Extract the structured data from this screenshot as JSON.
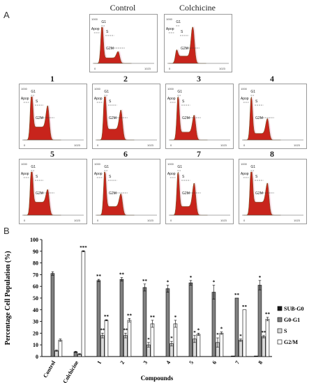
{
  "panel_a_label": "A",
  "panel_b_label": "B",
  "histograms": [
    {
      "title": "Control",
      "gate_labels": [
        "Apop",
        "G1",
        "S",
        "G2M"
      ],
      "axis_left": "1000",
      "axis_start": "0",
      "axis_end": "1023",
      "g1_level": 1.0,
      "s_level": 0.15,
      "g2_level": 0.18
    },
    {
      "title": "Colchicine",
      "gate_labels": [
        "Apop",
        "G1",
        "S",
        "G2M"
      ],
      "axis_left": "1000",
      "axis_start": "0",
      "axis_end": "1023",
      "g1_level": 0.18,
      "s_level": 0.2,
      "g2_level": 0.85
    },
    {
      "title": "1",
      "gate_labels": [
        "Apop",
        "G1",
        "S",
        "G2M"
      ],
      "axis_left": "1000",
      "axis_start": "0",
      "axis_end": "1023",
      "g1_level": 0.95,
      "s_level": 0.3,
      "g2_level": 0.5
    },
    {
      "title": "2",
      "gate_labels": [
        "Apop",
        "G1",
        "S",
        "G2M"
      ],
      "axis_left": "1000",
      "axis_start": "0",
      "axis_end": "1023",
      "g1_level": 1.0,
      "s_level": 0.25,
      "g2_level": 0.45
    },
    {
      "title": "3",
      "gate_labels": [
        "Apop",
        "G1",
        "S",
        "G2M"
      ],
      "axis_left": "1000",
      "axis_start": "0",
      "axis_end": "1023",
      "g1_level": 0.9,
      "s_level": 0.18,
      "g2_level": 0.4
    },
    {
      "title": "4",
      "gate_labels": [
        "Apop",
        "G1",
        "S",
        "G2M"
      ],
      "axis_left": "1000",
      "axis_start": "0",
      "axis_end": "1023",
      "g1_level": 0.9,
      "s_level": 0.15,
      "g2_level": 0.35
    },
    {
      "title": "5",
      "gate_labels": [
        "Apop",
        "G1",
        "S",
        "G2M"
      ],
      "axis_left": "1000",
      "axis_start": "0",
      "axis_end": "1023",
      "g1_level": 1.0,
      "s_level": 0.3,
      "g2_level": 0.3
    },
    {
      "title": "6",
      "gate_labels": [
        "Apop",
        "G1",
        "S",
        "G2M"
      ],
      "axis_left": "1000",
      "axis_start": "0",
      "axis_end": "1023",
      "g1_level": 0.9,
      "s_level": 0.2,
      "g2_level": 0.3
    },
    {
      "title": "7",
      "gate_labels": [
        "Apop",
        "G1",
        "S",
        "G2M"
      ],
      "axis_left": "1000",
      "axis_start": "0",
      "axis_end": "1023",
      "g1_level": 0.85,
      "s_level": 0.2,
      "g2_level": 0.55
    },
    {
      "title": "8",
      "gate_labels": [
        "Apop",
        "G1",
        "S",
        "G2M"
      ],
      "axis_left": "1000",
      "axis_start": "0",
      "axis_end": "1023",
      "g1_level": 1.0,
      "s_level": 0.3,
      "g2_level": 0.45
    }
  ],
  "colors": {
    "hist_fill": "#c8241c",
    "hist_tail": "#7a5a2a",
    "hist_glow": "#f0a0c0",
    "gate_line": "#333333"
  },
  "chart_data": {
    "type": "bar",
    "title": "",
    "xlabel": "Compounds",
    "ylabel": "Percentage Cell Population (%)",
    "ylim": [
      0,
      100
    ],
    "yticks": [
      "0",
      "10",
      "20",
      "30",
      "40",
      "50",
      "60",
      "70",
      "80",
      "90",
      "100"
    ],
    "categories": [
      "Control",
      "Colchicine",
      "1",
      "2",
      "3",
      "4",
      "5",
      "6",
      "7",
      "8"
    ],
    "series": [
      {
        "name": "SUB-G0",
        "color": "#1a1a1a",
        "values": [
          0,
          0,
          0,
          0,
          0,
          0,
          0,
          0,
          0.5,
          0.5
        ],
        "errors": [
          0,
          0,
          0,
          0,
          0,
          0,
          0,
          0,
          0,
          0
        ],
        "stars": [
          "",
          "",
          "",
          "",
          "",
          "",
          "",
          "",
          "",
          ""
        ]
      },
      {
        "name": "G0-G1",
        "color": "#808080",
        "values": [
          71,
          4,
          65,
          66,
          59,
          58,
          63,
          55,
          50,
          61
        ],
        "errors": [
          1.5,
          0.5,
          1,
          1.5,
          3,
          3,
          2,
          6,
          0,
          4
        ],
        "stars": [
          "",
          "",
          "**",
          "**",
          "**",
          "*",
          "*",
          "*",
          "**",
          "*"
        ]
      },
      {
        "name": "S",
        "color": "#d8d8d8",
        "values": [
          5,
          2,
          18,
          18,
          10,
          11,
          15,
          12,
          14,
          17
        ],
        "errors": [
          0.5,
          0.5,
          2,
          2,
          2,
          2,
          3,
          4,
          1,
          1
        ],
        "stars": [
          "",
          "",
          "**",
          "**",
          "*",
          "*",
          "*",
          "*",
          "*",
          "**"
        ]
      },
      {
        "name": "G2/M",
        "color": "#ffffff",
        "values": [
          14,
          90,
          31,
          31,
          28,
          28,
          19,
          20,
          40,
          32
        ],
        "errors": [
          1,
          0.5,
          0.5,
          1.5,
          3,
          3,
          1,
          1,
          0,
          1.5
        ],
        "stars": [
          "",
          "***",
          "**",
          "**",
          "**",
          "*",
          "*",
          "*",
          "**",
          "**"
        ]
      }
    ],
    "legend_position": "right",
    "grid": false
  }
}
